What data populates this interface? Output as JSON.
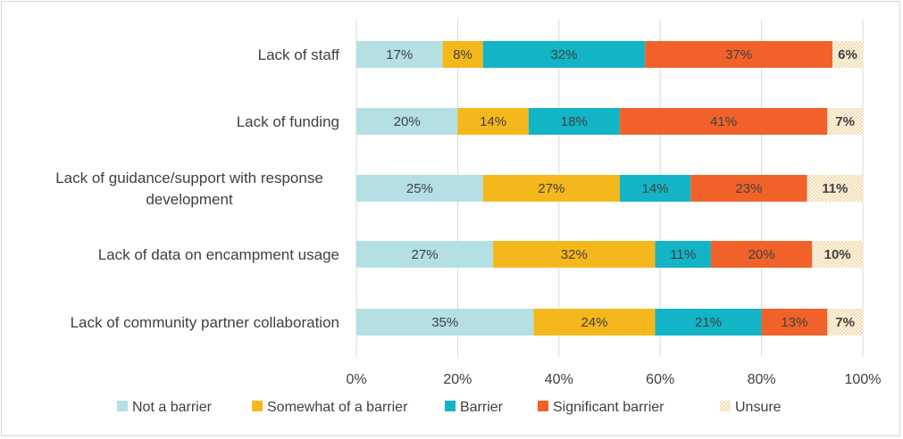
{
  "chart_data": {
    "type": "bar",
    "orientation": "horizontal",
    "stacked": "percent",
    "categories": [
      "Lack of staff",
      "Lack of funding",
      "Lack of guidance/support with response development",
      "Lack of data on encampment usage",
      "Lack of community partner collaboration"
    ],
    "category_lines": [
      [
        "Lack of staff"
      ],
      [
        "Lack of funding"
      ],
      [
        "Lack of guidance/support with response",
        "development"
      ],
      [
        "Lack of data on encampment usage"
      ],
      [
        "Lack of community partner collaboration"
      ]
    ],
    "series": [
      {
        "name": "Not a barrier",
        "color": "#b4e0e4",
        "values": [
          17,
          20,
          25,
          27,
          35
        ]
      },
      {
        "name": "Somewhat of a barrier",
        "color": "#f5b81c",
        "values": [
          8,
          14,
          27,
          32,
          24
        ]
      },
      {
        "name": "Barrier",
        "color": "#12b4c6",
        "values": [
          32,
          18,
          14,
          11,
          21
        ]
      },
      {
        "name": "Significant barrier",
        "color": "#f0622a",
        "values": [
          37,
          41,
          23,
          20,
          13
        ]
      },
      {
        "name": "Unsure",
        "color": "#fbe9c4",
        "pattern": "dotted",
        "values": [
          6,
          7,
          11,
          10,
          7
        ]
      }
    ],
    "data_labels": [
      [
        "17%",
        "20%",
        "25%",
        "27%",
        "35%"
      ],
      [
        "8%",
        "14%",
        "27%",
        "32%",
        "24%"
      ],
      [
        "32%",
        "18%",
        "14%",
        "11%",
        "21%"
      ],
      [
        "37%",
        "41%",
        "23%",
        "20%",
        "13%"
      ],
      [
        "6%",
        "7%",
        "11%",
        "10%",
        "7%"
      ]
    ],
    "x_ticks": [
      "0%",
      "20%",
      "40%",
      "60%",
      "80%",
      "100%"
    ],
    "xlim": [
      0,
      100
    ],
    "grid": "vertical",
    "legend": "bottom",
    "title": "",
    "xlabel": "",
    "ylabel": ""
  }
}
